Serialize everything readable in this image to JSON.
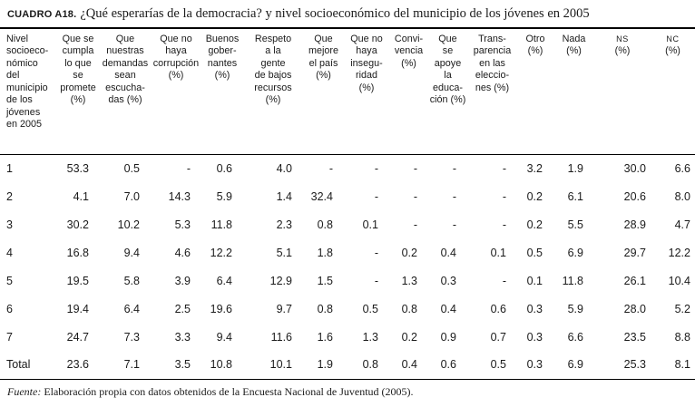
{
  "title": {
    "label": "CUADRO A18.",
    "text": "¿Qué esperarías de la democracia? y nivel socioeconómico del municipio de los jóvenes en 2005"
  },
  "table": {
    "columns": [
      {
        "label": "Nivel\nsocioeco-\nnómico\ndel\nmunicipio\nde los\njóvenes\nen 2005"
      },
      {
        "label": "Que se\ncumpla\nlo que\nse\npromete\n(%)"
      },
      {
        "label": "Que\nnuestras\ndemandas\nsean\nescucha-\ndas (%)"
      },
      {
        "label": "Que no\nhaya\ncorrupción\n(%)"
      },
      {
        "label": "Buenos\ngober-\nnantes\n(%)"
      },
      {
        "label": "Respeto\na la\ngente\nde bajos\nrecursos\n(%)"
      },
      {
        "label": "Que\nmejore\nel país\n(%)"
      },
      {
        "label": "Que no\nhaya\ninsegu-\nridad\n(%)"
      },
      {
        "label": "Convi-\nvencia\n(%)"
      },
      {
        "label": "Que\nse\napoye\nla\neduca-\nción (%)"
      },
      {
        "label": "Trans-\nparencia\nen las\neleccio-\nnes (%)"
      },
      {
        "label": "Otro\n(%)"
      },
      {
        "label": "Nada\n(%)"
      },
      {
        "label": "NS\n(%)"
      },
      {
        "label": "NC\n(%)"
      }
    ],
    "rows": [
      {
        "level": "1",
        "values": [
          "53.3",
          "0.5",
          "-",
          "0.6",
          "4.0",
          "-",
          "-",
          "-",
          "-",
          "-",
          "3.2",
          "1.9",
          "30.0",
          "6.6"
        ]
      },
      {
        "level": "2",
        "values": [
          "4.1",
          "7.0",
          "14.3",
          "5.9",
          "1.4",
          "32.4",
          "-",
          "-",
          "-",
          "-",
          "0.2",
          "6.1",
          "20.6",
          "8.0"
        ]
      },
      {
        "level": "3",
        "values": [
          "30.2",
          "10.2",
          "5.3",
          "11.8",
          "2.3",
          "0.8",
          "0.1",
          "-",
          "-",
          "-",
          "0.2",
          "5.5",
          "28.9",
          "4.7"
        ]
      },
      {
        "level": "4",
        "values": [
          "16.8",
          "9.4",
          "4.6",
          "12.2",
          "5.1",
          "1.8",
          "-",
          "0.2",
          "0.4",
          "0.1",
          "0.5",
          "6.9",
          "29.7",
          "12.2"
        ]
      },
      {
        "level": "5",
        "values": [
          "19.5",
          "5.8",
          "3.9",
          "6.4",
          "12.9",
          "1.5",
          "-",
          "1.3",
          "0.3",
          "-",
          "0.1",
          "11.8",
          "26.1",
          "10.4"
        ]
      },
      {
        "level": "6",
        "values": [
          "19.4",
          "6.4",
          "2.5",
          "19.6",
          "9.7",
          "0.8",
          "0.5",
          "0.8",
          "0.4",
          "0.6",
          "0.3",
          "5.9",
          "28.0",
          "5.2"
        ]
      },
      {
        "level": "7",
        "values": [
          "24.7",
          "7.3",
          "3.3",
          "9.4",
          "11.6",
          "1.6",
          "1.3",
          "0.2",
          "0.9",
          "0.7",
          "0.3",
          "6.6",
          "23.5",
          "8.8"
        ]
      },
      {
        "level": "Total",
        "values": [
          "23.6",
          "7.1",
          "3.5",
          "10.8",
          "10.1",
          "1.9",
          "0.8",
          "0.4",
          "0.6",
          "0.5",
          "0.3",
          "6.9",
          "25.3",
          "8.1"
        ]
      }
    ]
  },
  "footer": {
    "source_label": "Fuente:",
    "source_text": "Elaboración propia con datos obtenidos de la Encuesta Nacional de Juventud (2005)."
  }
}
